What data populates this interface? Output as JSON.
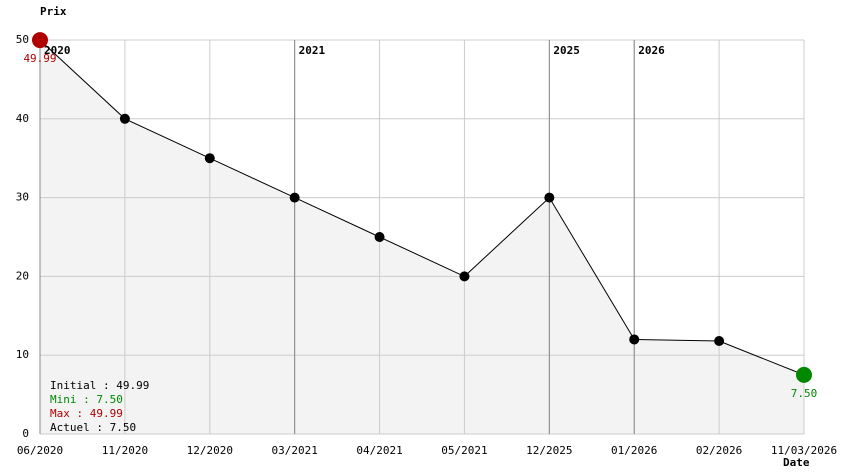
{
  "chart_data": {
    "type": "line",
    "y_title": "Prix",
    "x_title": "Date",
    "categories": [
      "06/2020",
      "11/2020",
      "12/2020",
      "03/2021",
      "04/2021",
      "05/2021",
      "12/2025",
      "01/2026",
      "02/2026",
      "11/03/2026"
    ],
    "values": [
      49.99,
      40,
      35,
      30,
      25,
      20,
      30,
      12,
      11.8,
      7.5
    ],
    "value_labels": [
      "49.99",
      null,
      null,
      null,
      null,
      null,
      null,
      null,
      null,
      "7.50"
    ],
    "color": "#000000",
    "area_color": "#f3f3f3",
    "max_color": "#b00000",
    "min_color": "#008800",
    "ylim": [
      0,
      50
    ],
    "yticks": [
      0,
      10,
      20,
      30,
      40,
      50
    ],
    "grid": true,
    "year_markers": [
      "2020",
      "2021",
      "2025",
      "2026"
    ],
    "summary": [
      {
        "text": "Initial : 49.99",
        "color": "#000000"
      },
      {
        "text": "Mini : 7.50",
        "color": "#008800"
      },
      {
        "text": "Max : 49.99",
        "color": "#b00000"
      },
      {
        "text": "Actuel : 7.50",
        "color": "#000000"
      }
    ]
  }
}
